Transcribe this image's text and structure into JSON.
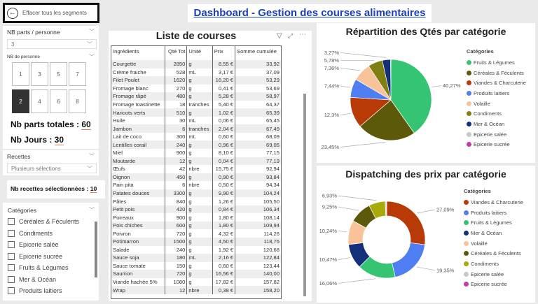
{
  "title": "Dashboard - Gestion des courses alimentaires",
  "back_button": "Effacer tous les segments",
  "filters": {
    "parts_label": "NB parts / personne",
    "parts_value": "3",
    "personnes_label": "NB de personne",
    "personnes_options": [
      "1",
      "3",
      "5",
      "7",
      "2",
      "4",
      "6",
      "8"
    ],
    "personnes_selected": "2",
    "parts_totales_label": "Nb parts totales : ",
    "parts_totales": "60",
    "jours_label": "Nb Jours : ",
    "jours": "30",
    "recettes_label": "Recettes",
    "recettes_value": "Plusieurs sélections",
    "nb_recettes_label": "Nb recettes sélectionnées : ",
    "nb_recettes": "10",
    "categories_label": "Catégories",
    "categories": [
      "Céréales & Féculents",
      "Condiments",
      "Epicerie salée",
      "Epicerie sucrée",
      "Fruits & Légumes",
      "Mer & Océan",
      "Produits laitiers"
    ]
  },
  "table": {
    "title": "Liste de courses",
    "columns": [
      "Ingrédients",
      "Qté Tot",
      "Unité",
      "Prix",
      "Somme cumulée"
    ],
    "rows": [
      [
        "Courgette",
        "2850",
        "g",
        "8,55 €",
        "33,92"
      ],
      [
        "Crème fraiche",
        "528",
        "mL",
        "3,17 €",
        "37,09"
      ],
      [
        "Filet Poulet",
        "1620",
        "g",
        "16,20 €",
        "53,29"
      ],
      [
        "Fromage blanc",
        "270",
        "g",
        "0,41 €",
        "53,69"
      ],
      [
        "Fromage râpé",
        "480",
        "g",
        "5,28 €",
        "58,97"
      ],
      [
        "Fromage toastinette",
        "18",
        "tranches",
        "5,40 €",
        "64,37"
      ],
      [
        "Haricots verts",
        "510",
        "g",
        "1,02 €",
        "65,39"
      ],
      [
        "Huile",
        "30",
        "mL",
        "0,06 €",
        "65,45"
      ],
      [
        "Jambon",
        "6",
        "tranches",
        "2,04 €",
        "67,49"
      ],
      [
        "Lait de coco",
        "300",
        "mL",
        "0,60 €",
        "68,09"
      ],
      [
        "Lentilles corail",
        "240",
        "g",
        "0,96 €",
        "69,05"
      ],
      [
        "Miel",
        "900",
        "g",
        "8,10 €",
        "77,15"
      ],
      [
        "Moutarde",
        "12",
        "g",
        "0,04 €",
        "77,19"
      ],
      [
        "Œufs",
        "42",
        "nbre",
        "15,75 €",
        "92,94"
      ],
      [
        "Oignon",
        "450",
        "g",
        "0,90 €",
        "93,84"
      ],
      [
        "Pain pita",
        "6",
        "nbre",
        "0,50 €",
        "94,34"
      ],
      [
        "Patates douces",
        "3300",
        "g",
        "9,90 €",
        "104,24"
      ],
      [
        "Pâtes",
        "840",
        "g",
        "1,26 €",
        "105,50"
      ],
      [
        "Petit pois",
        "420",
        "g",
        "0,84 €",
        "106,34"
      ],
      [
        "Poireaux",
        "900",
        "g",
        "1,80 €",
        "108,14"
      ],
      [
        "Pois chiches",
        "600",
        "g",
        "1,80 €",
        "109,94"
      ],
      [
        "Poivron",
        "720",
        "g",
        "4,32 €",
        "114,26"
      ],
      [
        "Potimarron",
        "1500",
        "g",
        "4,50 €",
        "118,76"
      ],
      [
        "Salade",
        "240",
        "g",
        "1,92 €",
        "120,68"
      ],
      [
        "Sauce soja",
        "180",
        "mL",
        "2,16 €",
        "122,84"
      ],
      [
        "Sauce tomate",
        "150",
        "g",
        "0,60 €",
        "123,44"
      ],
      [
        "Saumon",
        "720",
        "g",
        "16,56 €",
        "140,00"
      ],
      [
        "Viande hachée 5%",
        "1080",
        "g",
        "17,82 €",
        "157,82"
      ],
      [
        "Wrap",
        "12",
        "nbre",
        "0,38 €",
        "158,20"
      ]
    ]
  },
  "chart_data": [
    {
      "type": "pie",
      "title": "Répartition des Qtés par catégorie",
      "legend_title": "Catégories",
      "legend_position": "right",
      "categories": [
        "Fruits & Légumes",
        "Céréales & Féculents",
        "Viandes & Charcuterie",
        "Produits laitiers",
        "Volaille",
        "Condiments",
        "Mer & Océan",
        "Epicerie salée",
        "Epicerie sucrée"
      ],
      "values": [
        40.27,
        23.45,
        12.3,
        7.44,
        7.36,
        5.78,
        3.27,
        0.1,
        0.03
      ],
      "labels": [
        "40,27%",
        "23,45%",
        "12,3%",
        "7,44%",
        "7,36%",
        "5,78%",
        "3,27%",
        "",
        ""
      ],
      "colors": [
        "#34c472",
        "#5c5a0a",
        "#b83a06",
        "#4f7ef2",
        "#f9c39a",
        "#7f7f12",
        "#14307a",
        "#c8c8c8",
        "#c43aa8"
      ]
    },
    {
      "type": "donut",
      "title": "Dispatching des prix par catégorie",
      "legend_title": "Catégories",
      "legend_position": "right",
      "categories": [
        "Viandes & Charcuterie",
        "Produits laitiers",
        "Fruits & Légumes",
        "Mer & Océan",
        "Volaille",
        "Céréales & Féculents",
        "Condiments",
        "Epicerie salée",
        "Epicerie sucrée"
      ],
      "values": [
        27.09,
        19.35,
        16.06,
        10.47,
        10.24,
        9.25,
        6.93,
        0.5,
        0.11
      ],
      "labels": [
        "27,09%",
        "19,35%",
        "16,06%",
        "10,47%",
        "10,24%",
        "9,25%",
        "6,93%",
        "",
        ""
      ],
      "colors": [
        "#b83a06",
        "#4f7ef2",
        "#34c472",
        "#14307a",
        "#f9c39a",
        "#5c5a0a",
        "#a8aa0a",
        "#c8c8c8",
        "#c43aa8"
      ]
    }
  ]
}
